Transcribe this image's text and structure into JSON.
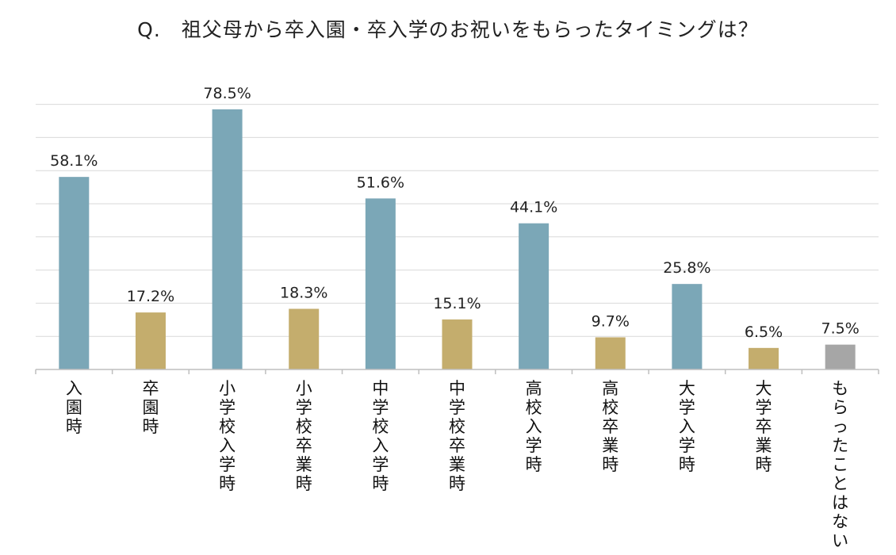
{
  "chart_data": {
    "type": "bar",
    "title": "Q.　祖父母から卒入園・卒入学のお祝いをもらったタイミングは？",
    "categories": [
      "入園時",
      "卒園時",
      "小学校入学時",
      "小学校卒業時",
      "中学校入学時",
      "中学校卒業時",
      "高校入学時",
      "高校卒業時",
      "大学入学時",
      "大学卒業時",
      "もらったことはない"
    ],
    "values": [
      58.1,
      17.2,
      78.5,
      18.3,
      51.6,
      15.1,
      44.1,
      9.7,
      25.8,
      6.5,
      7.5
    ],
    "value_labels": [
      "58.1%",
      "17.2%",
      "78.5%",
      "18.3%",
      "51.6%",
      "15.1%",
      "44.1%",
      "9.7%",
      "25.8%",
      "6.5%",
      "7.5%"
    ],
    "bar_kinds": [
      "entry",
      "graduation",
      "entry",
      "graduation",
      "entry",
      "graduation",
      "entry",
      "graduation",
      "entry",
      "graduation",
      "none"
    ],
    "colors": {
      "entry": "#7ba7b7",
      "graduation": "#c4ad6d",
      "none": "#a6a6a6",
      "grid": "#d9d9d9",
      "axis": "#bfbfbf"
    },
    "ylim": [
      0,
      80
    ],
    "grid": true,
    "grid_step": 10,
    "xlabel": "",
    "ylabel": ""
  }
}
